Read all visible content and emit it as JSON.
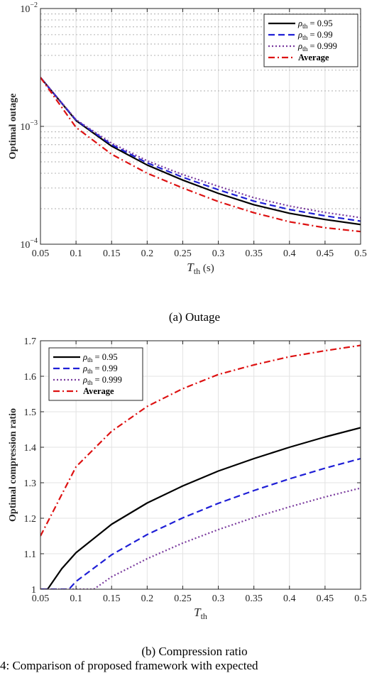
{
  "captions": {
    "a": "(a)  Outage",
    "b": "(b)  Compression ratio",
    "bottom_fragment": "4:  Comparison of proposed framework with expected"
  },
  "chart_data": [
    {
      "type": "line",
      "ylabel": "Optimal outage",
      "xlabel_main": "T",
      "xlabel_sub": "th",
      "xlabel_unit": " (s)",
      "yscale": "log",
      "xlim": [
        0.05,
        0.5
      ],
      "ylim": [
        0.0001,
        0.01
      ],
      "grid": true,
      "legend_position": "top-right",
      "x_ticks": [
        "0.05",
        "0.1",
        "0.15",
        "0.2",
        "0.25",
        "0.3",
        "0.35",
        "0.4",
        "0.45",
        "0.5"
      ],
      "y_ticks": [
        {
          "base": "10",
          "exp": "−2"
        },
        {
          "base": "10",
          "exp": "−3"
        },
        {
          "base": "10",
          "exp": "−4"
        }
      ],
      "x": [
        0.05,
        0.1,
        0.15,
        0.2,
        0.25,
        0.3,
        0.35,
        0.4,
        0.45,
        0.5
      ],
      "series": [
        {
          "name": "ρ",
          "name_sub": "th",
          "name_value": " = 0.95",
          "color": "#000000",
          "dash": "solid",
          "values": [
            0.0026,
            0.00112,
            0.00068,
            0.00047,
            0.00035,
            0.00027,
            0.000216,
            0.000183,
            0.000162,
            0.000147
          ]
        },
        {
          "name": "ρ",
          "name_sub": "th",
          "name_value": " = 0.99",
          "color": "#1f1fd6",
          "dash": "dashed",
          "values": [
            0.0026,
            0.00113,
            0.0007,
            0.00049,
            0.00037,
            0.00029,
            0.000232,
            0.000197,
            0.000174,
            0.000157
          ]
        },
        {
          "name": "ρ",
          "name_sub": "th",
          "name_value": " = 0.999",
          "color": "#7a3b9e",
          "dash": "dotted",
          "values": [
            0.0026,
            0.00114,
            0.00072,
            0.00051,
            0.00039,
            0.00031,
            0.000248,
            0.000211,
            0.000186,
            0.000168
          ]
        },
        {
          "name": "Average",
          "name_sub": "",
          "name_value": "",
          "bold": true,
          "color": "#dd1111",
          "dash": "dashdot",
          "values": [
            0.0026,
            0.00098,
            0.00058,
            0.0004,
            0.0003,
            0.00023,
            0.000185,
            0.000155,
            0.000138,
            0.000128
          ]
        }
      ]
    },
    {
      "type": "line",
      "ylabel": "Optimal compression ratio",
      "xlabel_main": "T",
      "xlabel_sub": "th",
      "xlabel_unit": "",
      "yscale": "linear",
      "xlim": [
        0.05,
        0.5
      ],
      "ylim": [
        1,
        1.7
      ],
      "grid": true,
      "legend_position": "top-left",
      "x_ticks": [
        "0.05",
        "0.1",
        "0.15",
        "0.2",
        "0.25",
        "0.3",
        "0.35",
        "0.4",
        "0.45",
        "0.5"
      ],
      "y_ticks": [
        "1",
        "1.1",
        "1.2",
        "1.3",
        "1.4",
        "1.5",
        "1.6",
        "1.7"
      ],
      "series": [
        {
          "name": "ρ",
          "name_sub": "th",
          "name_value": " = 0.95",
          "color": "#000000",
          "dash": "solid",
          "x": [
            0.05,
            0.06,
            0.08,
            0.1,
            0.15,
            0.2,
            0.25,
            0.3,
            0.35,
            0.4,
            0.45,
            0.5
          ],
          "values": [
            1.0,
            1.0,
            1.058,
            1.103,
            1.183,
            1.243,
            1.291,
            1.333,
            1.368,
            1.4,
            1.429,
            1.455
          ]
        },
        {
          "name": "ρ",
          "name_sub": "th",
          "name_value": " = 0.99",
          "color": "#1f1fd6",
          "dash": "dashed",
          "x": [
            0.05,
            0.09,
            0.1,
            0.15,
            0.2,
            0.25,
            0.3,
            0.35,
            0.4,
            0.45,
            0.5
          ],
          "values": [
            1.0,
            1.0,
            1.022,
            1.097,
            1.154,
            1.201,
            1.242,
            1.278,
            1.311,
            1.341,
            1.368
          ]
        },
        {
          "name": "ρ",
          "name_sub": "th",
          "name_value": " = 0.999",
          "color": "#7a3b9e",
          "dash": "dotted",
          "x": [
            0.05,
            0.125,
            0.15,
            0.2,
            0.25,
            0.3,
            0.35,
            0.4,
            0.45,
            0.5
          ],
          "values": [
            1.0,
            1.0,
            1.035,
            1.086,
            1.13,
            1.168,
            1.202,
            1.232,
            1.26,
            1.285
          ]
        },
        {
          "name": "Average",
          "name_sub": "",
          "name_value": "",
          "bold": true,
          "color": "#dd1111",
          "dash": "dashdot",
          "x": [
            0.05,
            0.1,
            0.15,
            0.2,
            0.25,
            0.3,
            0.35,
            0.4,
            0.45,
            0.5
          ],
          "values": [
            1.15,
            1.345,
            1.445,
            1.515,
            1.565,
            1.605,
            1.632,
            1.655,
            1.672,
            1.687
          ]
        }
      ]
    }
  ]
}
